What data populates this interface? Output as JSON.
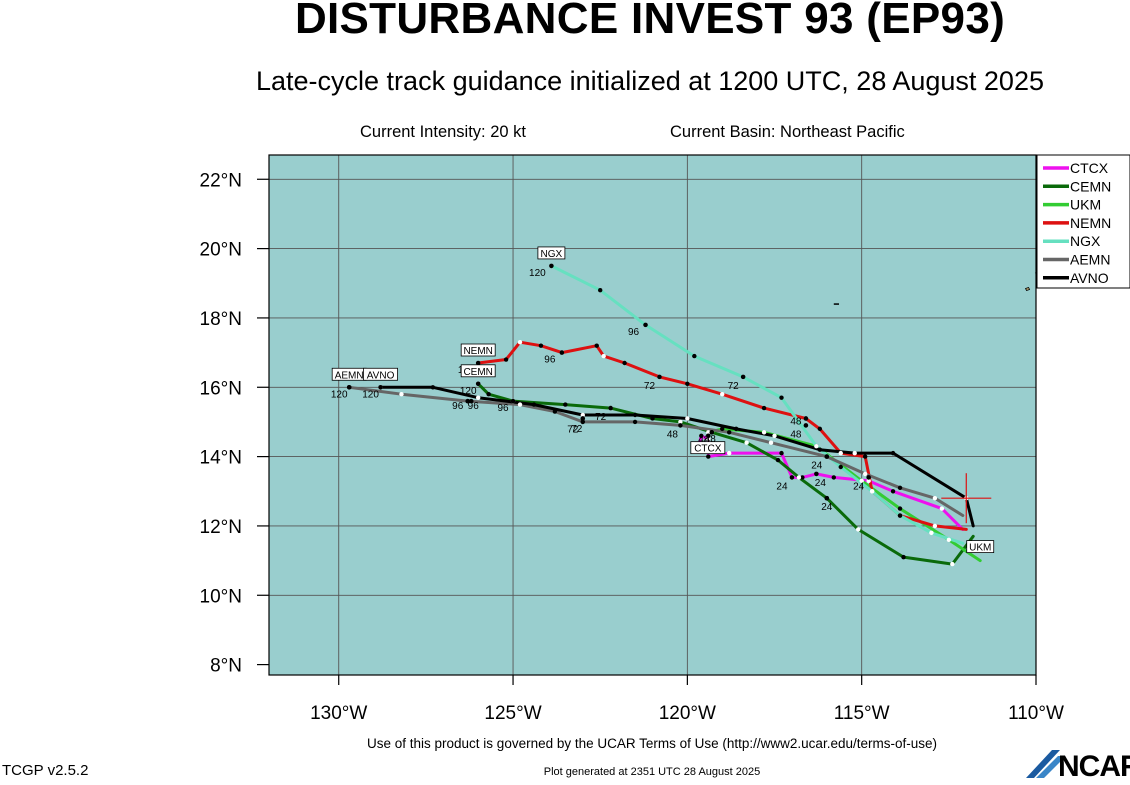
{
  "title": "DISTURBANCE INVEST 93 (EP93)",
  "subtitle": "Late-cycle track guidance initialized at 1200 UTC, 28 August 2025",
  "info": {
    "intensity": "Current Intensity: 20 kt",
    "basin": "Current Basin: Northeast Pacific"
  },
  "footer": {
    "terms": "Use of this product is governed by the UCAR Terms of Use (http://www2.ucar.edu/terms-of-use)",
    "version": "TCGP v2.5.2",
    "generated": "Plot generated at 2351 UTC  28 August 2025",
    "logo_text": "NCAR"
  },
  "chart_data": {
    "type": "map-track",
    "lon_range": [
      -132,
      -110
    ],
    "lat_range": [
      7.7,
      22.7
    ],
    "x_ticks": [
      {
        "v": -130,
        "label": "130°W"
      },
      {
        "v": -125,
        "label": "125°W"
      },
      {
        "v": -120,
        "label": "120°W"
      },
      {
        "v": -115,
        "label": "115°W"
      },
      {
        "v": -110,
        "label": "110°W"
      }
    ],
    "y_ticks": [
      {
        "v": 8,
        "label": "8°N"
      },
      {
        "v": 10,
        "label": "10°N"
      },
      {
        "v": 12,
        "label": "12°N"
      },
      {
        "v": 14,
        "label": "14°N"
      },
      {
        "v": 16,
        "label": "16°N"
      },
      {
        "v": 18,
        "label": "18°N"
      },
      {
        "v": 20,
        "label": "20°N"
      },
      {
        "v": 22,
        "label": "22°N"
      }
    ],
    "grid_lons": [
      -130,
      -125,
      -120,
      -115
    ],
    "grid_lats": [
      10,
      12,
      14,
      16,
      18,
      20,
      22
    ],
    "ocean_color": "#99cece",
    "initial_position": {
      "lon": -112.0,
      "lat": 12.8
    },
    "legend_position": "top-right",
    "series": [
      {
        "name": "CTCX",
        "color": "#ee11ee",
        "points": [
          [
            -112.1,
            11.9
          ],
          [
            -112.7,
            12.5
          ],
          [
            -114.1,
            13.0
          ],
          [
            -114.8,
            13.3
          ],
          [
            -115.8,
            13.4
          ],
          [
            -116.3,
            13.5
          ],
          [
            -116.7,
            13.4
          ],
          [
            -117.0,
            13.4
          ],
          [
            -117.3,
            14.1
          ],
          [
            -118.8,
            14.1
          ],
          [
            -119.4,
            14.0
          ],
          [
            -119.4,
            14.5
          ],
          [
            -119.6,
            14.6
          ],
          [
            -119.7,
            14.2
          ]
        ],
        "labels": []
      },
      {
        "name": "CEMN",
        "color": "#0a6a0a",
        "points": [
          [
            -111.8,
            11.7
          ],
          [
            -112.4,
            10.9
          ],
          [
            -113.8,
            11.1
          ],
          [
            -115.1,
            11.9
          ],
          [
            -116.0,
            12.8
          ],
          [
            -116.8,
            13.4
          ],
          [
            -117.4,
            13.9
          ],
          [
            -118.3,
            14.4
          ],
          [
            -119.3,
            14.7
          ],
          [
            -120.2,
            15.0
          ],
          [
            -121.0,
            15.1
          ],
          [
            -122.2,
            15.4
          ],
          [
            -123.5,
            15.5
          ],
          [
            -125.0,
            15.6
          ],
          [
            -125.7,
            15.8
          ],
          [
            -126.0,
            16.1
          ]
        ],
        "labels": [
          {
            "lon": -116.0,
            "lat": 12.8,
            "text": "24",
            "ldx": 0,
            "ldy": 12
          },
          {
            "lon": -119.3,
            "lat": 14.7,
            "text": "48",
            "ldx": -8,
            "ldy": 10
          },
          {
            "lon": -122.2,
            "lat": 15.4,
            "text": "72",
            "ldx": -10,
            "ldy": 12
          },
          {
            "lon": -125.0,
            "lat": 15.6,
            "text": "96",
            "ldx": -10,
            "ldy": 10
          },
          {
            "lon": -126.0,
            "lat": 16.1,
            "text": "120",
            "ldx": -10,
            "ldy": 10
          }
        ],
        "box": {
          "text": "CEMN",
          "lon": -126.0,
          "lat": 16.1,
          "dx": 0,
          "dy": -13
        }
      },
      {
        "name": "UKM",
        "color": "#33cc33",
        "points": [
          [
            -111.6,
            11.0
          ],
          [
            -112.5,
            11.6
          ],
          [
            -113.9,
            12.5
          ],
          [
            -115.0,
            13.3
          ],
          [
            -116.3,
            14.3
          ],
          [
            -117.8,
            14.7
          ],
          [
            -119.0,
            14.8
          ],
          [
            -119.4,
            14.7
          ]
        ],
        "labels": [],
        "box": {
          "text": "UKM",
          "lon": -111.6,
          "lat": 11.0,
          "dx": 0,
          "dy": -14
        }
      },
      {
        "name": "NEMN",
        "color": "#dd1111",
        "points": [
          [
            -112.0,
            11.9
          ],
          [
            -112.9,
            12.0
          ],
          [
            -113.9,
            12.3
          ],
          [
            -114.7,
            13.0
          ],
          [
            -114.9,
            14.0
          ],
          [
            -115.6,
            14.1
          ],
          [
            -116.2,
            14.8
          ],
          [
            -116.6,
            15.1
          ],
          [
            -117.8,
            15.4
          ],
          [
            -119.0,
            15.8
          ],
          [
            -120.0,
            16.1
          ],
          [
            -120.8,
            16.3
          ],
          [
            -121.8,
            16.7
          ],
          [
            -122.4,
            16.9
          ],
          [
            -122.6,
            17.2
          ],
          [
            -123.6,
            17.0
          ],
          [
            -124.2,
            17.2
          ],
          [
            -124.8,
            17.3
          ],
          [
            -125.2,
            16.8
          ],
          [
            -126.0,
            16.7
          ]
        ],
        "labels": [
          {
            "lon": -116.6,
            "lat": 15.1,
            "text": "48",
            "ldx": -10,
            "ldy": 6
          },
          {
            "lon": -120.8,
            "lat": 16.3,
            "text": "72",
            "ldx": -10,
            "ldy": 12
          },
          {
            "lon": -123.6,
            "lat": 17.0,
            "text": "96",
            "ldx": -12,
            "ldy": 10
          },
          {
            "lon": -126.0,
            "lat": 16.7,
            "text": "120",
            "ldx": -12,
            "ldy": 10
          }
        ],
        "box": {
          "text": "NEMN",
          "lon": -126.0,
          "lat": 16.7,
          "dx": 0,
          "dy": -13
        }
      },
      {
        "name": "NGX",
        "color": "#66e0c0",
        "points": [
          [
            -112.1,
            11.5
          ],
          [
            -113.0,
            11.8
          ],
          [
            -113.9,
            12.3
          ],
          [
            -114.7,
            13.0
          ],
          [
            -115.6,
            13.7
          ],
          [
            -116.3,
            14.3
          ],
          [
            -117.3,
            15.7
          ],
          [
            -118.4,
            16.3
          ],
          [
            -119.8,
            16.9
          ],
          [
            -121.2,
            17.8
          ],
          [
            -122.5,
            18.8
          ],
          [
            -123.9,
            19.5
          ]
        ],
        "labels": [
          {
            "lon": -118.4,
            "lat": 16.3,
            "text": "72",
            "ldx": -10,
            "ldy": 12
          },
          {
            "lon": -121.2,
            "lat": 17.8,
            "text": "96",
            "ldx": -12,
            "ldy": 10
          },
          {
            "lon": -123.9,
            "lat": 19.5,
            "text": "120",
            "ldx": -14,
            "ldy": 10
          }
        ],
        "box": {
          "text": "NGX",
          "lon": -123.9,
          "lat": 19.5,
          "dx": 0,
          "dy": -13
        }
      },
      {
        "name": "AEMN",
        "color": "#666666",
        "points": [
          [
            -112.1,
            12.3
          ],
          [
            -112.9,
            12.8
          ],
          [
            -113.9,
            13.1
          ],
          [
            -114.9,
            13.5
          ],
          [
            -116.0,
            14.0
          ],
          [
            -117.6,
            14.4
          ],
          [
            -118.8,
            14.7
          ],
          [
            -120.2,
            14.9
          ],
          [
            -121.5,
            15.0
          ],
          [
            -123.0,
            15.0
          ],
          [
            -123.8,
            15.3
          ],
          [
            -124.8,
            15.5
          ],
          [
            -126.3,
            15.6
          ],
          [
            -128.2,
            15.8
          ],
          [
            -129.7,
            16.0
          ]
        ],
        "labels": [
          {
            "lon": -116.0,
            "lat": 14.0,
            "text": "24",
            "ldx": -10,
            "ldy": 12
          },
          {
            "lon": -120.2,
            "lat": 14.9,
            "text": "48",
            "ldx": -8,
            "ldy": 12
          },
          {
            "lon": -123.0,
            "lat": 15.0,
            "text": "72",
            "ldx": -6,
            "ldy": 10
          },
          {
            "lon": -126.3,
            "lat": 15.6,
            "text": "96",
            "ldx": -10,
            "ldy": 8
          },
          {
            "lon": -129.7,
            "lat": 16.0,
            "text": "120",
            "ldx": -10,
            "ldy": 10
          }
        ],
        "box": {
          "text": "AEMN",
          "lon": -129.7,
          "lat": 16.0,
          "dx": 0,
          "dy": -13
        }
      },
      {
        "name": "AVNO",
        "color": "#000000",
        "points": [
          [
            -111.8,
            12.0
          ],
          [
            -112.0,
            12.8
          ],
          [
            -114.1,
            14.1
          ],
          [
            -115.2,
            14.1
          ],
          [
            -116.2,
            14.2
          ],
          [
            -117.5,
            14.6
          ],
          [
            -118.6,
            14.8
          ],
          [
            -120.0,
            15.1
          ],
          [
            -121.5,
            15.2
          ],
          [
            -123.0,
            15.2
          ],
          [
            -124.4,
            15.5
          ],
          [
            -126.0,
            15.7
          ],
          [
            -127.3,
            16.0
          ],
          [
            -128.8,
            16.0
          ]
        ],
        "labels": [
          {
            "lon": -114.8,
            "lat": 13.4,
            "text": "24",
            "ldx": -10,
            "ldy": 12
          },
          {
            "lon": -116.6,
            "lat": 14.9,
            "text": "48",
            "ldx": -10,
            "ldy": 12
          },
          {
            "lon": -123.0,
            "lat": 15.1,
            "text": "72",
            "ldx": -10,
            "ldy": 14
          },
          {
            "lon": -126.2,
            "lat": 15.6,
            "text": "96",
            "ldx": 2,
            "ldy": 8
          },
          {
            "lon": -128.8,
            "lat": 16.0,
            "text": "120",
            "ldx": -10,
            "ldy": 10
          }
        ],
        "box": {
          "text": "AVNO",
          "lon": -128.8,
          "lat": 16.0,
          "dx": 0,
          "dy": -13
        }
      }
    ],
    "extra_boxes": [
      {
        "text": "CTCX",
        "lon": -119.7,
        "lat": 14.2,
        "dx": 10,
        "dy": -2
      }
    ],
    "extra_labels": [
      {
        "lon": -117.0,
        "lat": 13.4,
        "text": "24",
        "ldx": -10,
        "ldy": 12
      },
      {
        "lon": -116.3,
        "lat": 13.5,
        "text": "24",
        "ldx": 4,
        "ldy": 12
      },
      {
        "lon": -119.4,
        "lat": 14.6,
        "text": "48",
        "ldx": 2,
        "ldy": 6
      }
    ]
  }
}
